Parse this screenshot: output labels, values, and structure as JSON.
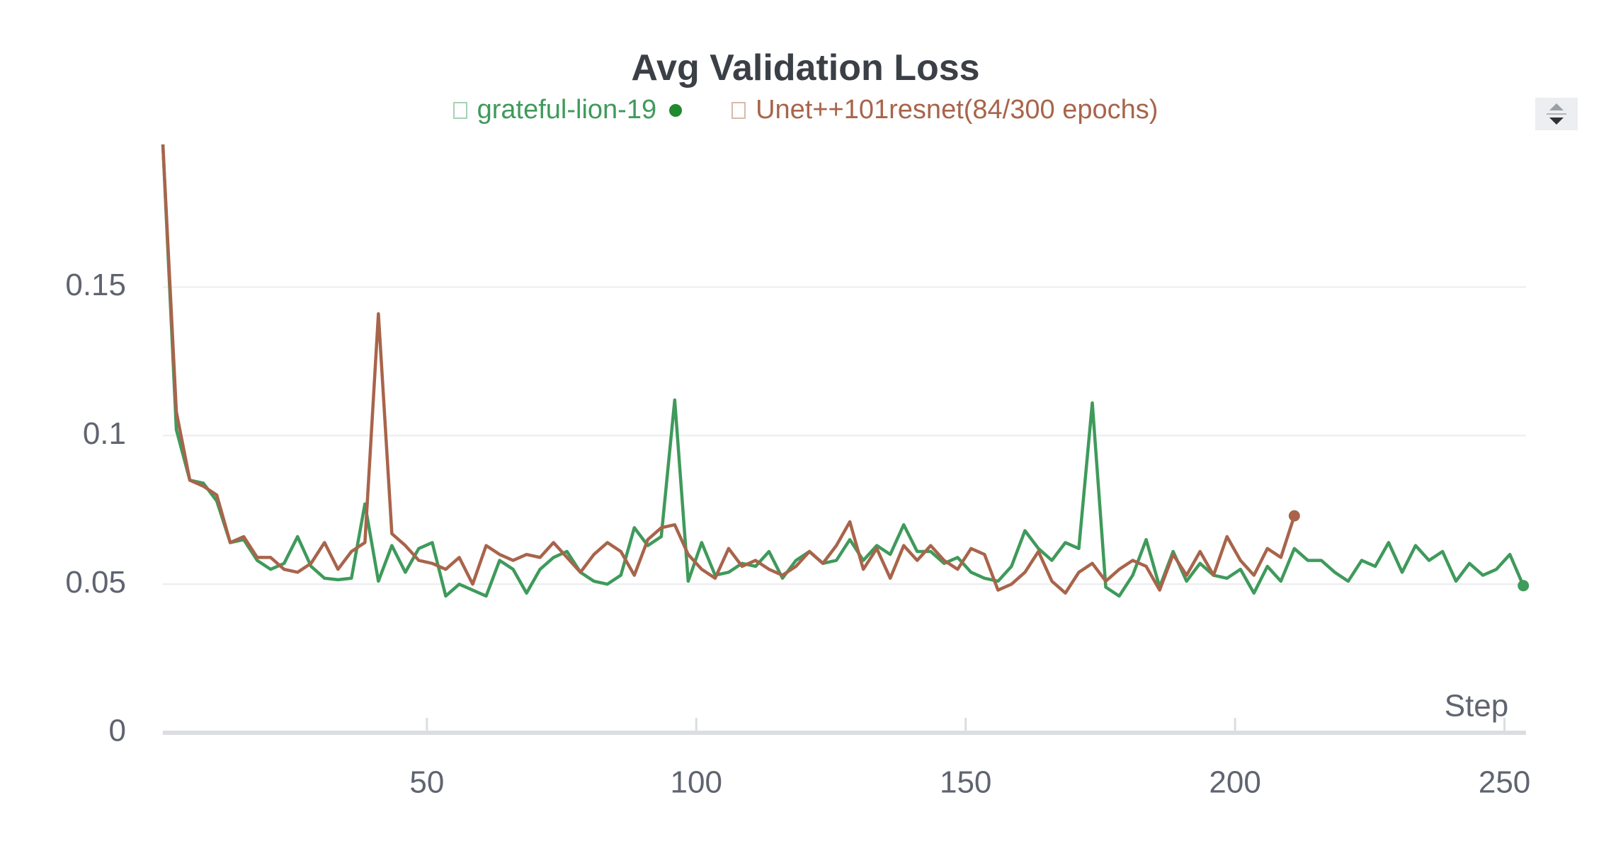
{
  "chart_data": {
    "type": "line",
    "title": "Avg Validation Loss",
    "x_label": "Step",
    "xlim": [
      1,
      254
    ],
    "xticks": [
      50,
      100,
      150,
      200,
      250
    ],
    "ylim": [
      0,
      0.198
    ],
    "yticks": [
      0,
      0.05,
      0.1,
      0.15
    ],
    "grid": true,
    "series": [
      {
        "name": "grateful-lion-19",
        "color": "#3f9a5b",
        "x": [
          1,
          3.5,
          6,
          8.5,
          11,
          13.5,
          16,
          18.5,
          21,
          23.5,
          26,
          28.5,
          31,
          33.5,
          36,
          38.5,
          41,
          43.5,
          46,
          48.5,
          51,
          53.5,
          56,
          58.5,
          61,
          63.5,
          66,
          68.5,
          71,
          73.5,
          76,
          78.5,
          81,
          83.5,
          86,
          88.5,
          91,
          93.5,
          96,
          98.5,
          101,
          103.5,
          106,
          108.5,
          111,
          113.5,
          116,
          118.5,
          121,
          123.5,
          126,
          128.5,
          131,
          133.5,
          136,
          138.5,
          141,
          143.5,
          146,
          148.5,
          151,
          153.5,
          156,
          158.5,
          161,
          163.5,
          166,
          168.5,
          171,
          173.5,
          176,
          178.5,
          181,
          183.5,
          186,
          188.5,
          191,
          193.5,
          196,
          198.5,
          201,
          203.5,
          206,
          208.5,
          211,
          213.5,
          216,
          218.5,
          221,
          223.5,
          226,
          228.5,
          231,
          233.5,
          236,
          238.5,
          241,
          243.5,
          246,
          248.5,
          251,
          253.5
        ],
        "values": [
          0.198,
          0.102,
          0.085,
          0.084,
          0.078,
          0.064,
          0.065,
          0.058,
          0.055,
          0.057,
          0.066,
          0.056,
          0.052,
          0.0515,
          0.052,
          0.077,
          0.051,
          0.063,
          0.054,
          0.062,
          0.064,
          0.046,
          0.05,
          0.048,
          0.046,
          0.058,
          0.055,
          0.047,
          0.055,
          0.059,
          0.061,
          0.054,
          0.051,
          0.05,
          0.053,
          0.069,
          0.063,
          0.066,
          0.112,
          0.051,
          0.064,
          0.053,
          0.054,
          0.057,
          0.056,
          0.061,
          0.052,
          0.058,
          0.061,
          0.057,
          0.058,
          0.065,
          0.058,
          0.063,
          0.06,
          0.07,
          0.061,
          0.061,
          0.057,
          0.059,
          0.054,
          0.052,
          0.051,
          0.056,
          0.068,
          0.062,
          0.058,
          0.064,
          0.062,
          0.111,
          0.049,
          0.046,
          0.053,
          0.065,
          0.049,
          0.061,
          0.051,
          0.057,
          0.053,
          0.052,
          0.055,
          0.047,
          0.056,
          0.051,
          0.062,
          0.058,
          0.058,
          0.054,
          0.051,
          0.058,
          0.056,
          0.064,
          0.054,
          0.063,
          0.058,
          0.061,
          0.051,
          0.057,
          0.053,
          0.055,
          0.06,
          0.0495
        ]
      },
      {
        "name": "Unet++101resnet(84/300 epochs)",
        "color": "#a8644b",
        "x": [
          1,
          3.5,
          6,
          8.5,
          11,
          13.5,
          16,
          18.5,
          21,
          23.5,
          26,
          28.5,
          31,
          33.5,
          36,
          38.5,
          41,
          43.5,
          46,
          48.5,
          51,
          53.5,
          56,
          58.5,
          61,
          63.5,
          66,
          68.5,
          71,
          73.5,
          76,
          78.5,
          81,
          83.5,
          86,
          88.5,
          91,
          93.5,
          96,
          98.5,
          101,
          103.5,
          106,
          108.5,
          111,
          113.5,
          116,
          118.5,
          121,
          123.5,
          126,
          128.5,
          131,
          133.5,
          136,
          138.5,
          141,
          143.5,
          146,
          148.5,
          151,
          153.5,
          156,
          158.5,
          161,
          163.5,
          166,
          168.5,
          171,
          173.5,
          176,
          178.5,
          181,
          183.5,
          186,
          188.5,
          191,
          193.5,
          196,
          198.5,
          201,
          203.5,
          206,
          208.5,
          211
        ],
        "values": [
          0.198,
          0.108,
          0.085,
          0.083,
          0.08,
          0.064,
          0.066,
          0.059,
          0.059,
          0.055,
          0.054,
          0.057,
          0.064,
          0.055,
          0.061,
          0.064,
          0.141,
          0.067,
          0.063,
          0.058,
          0.057,
          0.055,
          0.059,
          0.05,
          0.063,
          0.06,
          0.058,
          0.06,
          0.059,
          0.064,
          0.059,
          0.054,
          0.06,
          0.064,
          0.061,
          0.053,
          0.065,
          0.069,
          0.07,
          0.06,
          0.055,
          0.052,
          0.062,
          0.056,
          0.058,
          0.055,
          0.053,
          0.056,
          0.061,
          0.057,
          0.063,
          0.071,
          0.055,
          0.062,
          0.052,
          0.063,
          0.058,
          0.063,
          0.058,
          0.055,
          0.062,
          0.06,
          0.048,
          0.05,
          0.054,
          0.061,
          0.051,
          0.047,
          0.054,
          0.057,
          0.051,
          0.055,
          0.058,
          0.056,
          0.048,
          0.06,
          0.053,
          0.061,
          0.053,
          0.066,
          0.058,
          0.053,
          0.062,
          0.059,
          0.073
        ]
      }
    ]
  }
}
